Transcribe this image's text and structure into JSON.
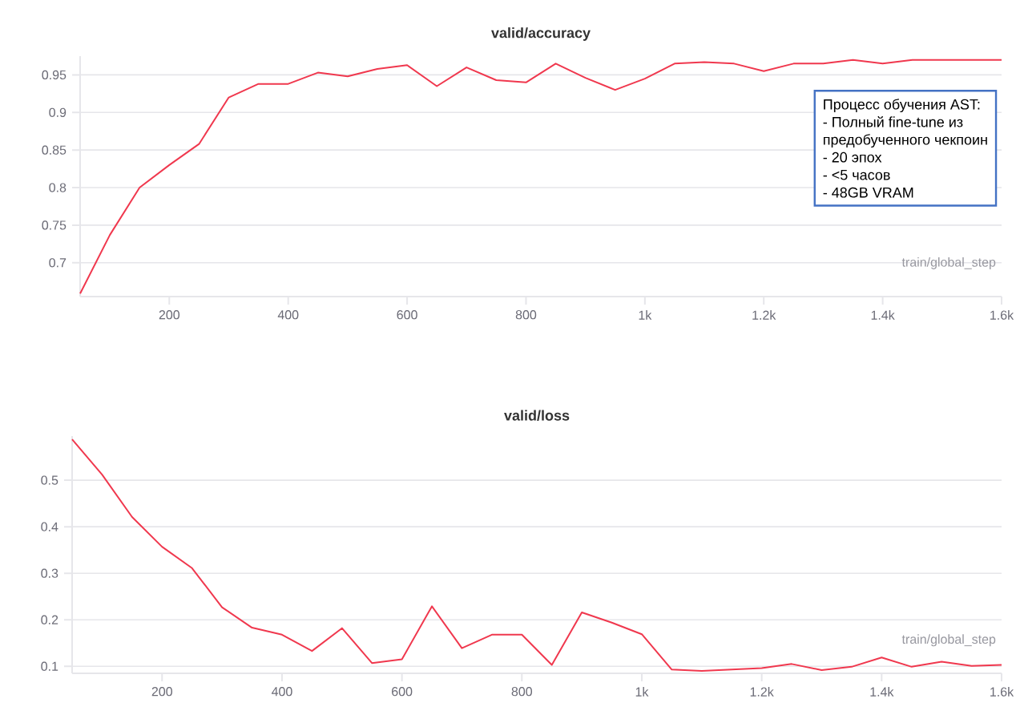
{
  "chart_data": [
    {
      "type": "line",
      "title": "valid/accuracy",
      "xlabel": "train/global_step",
      "xlim": [
        50,
        1600
      ],
      "ylim": [
        0.655,
        0.975
      ],
      "xticks": [
        200,
        400,
        600,
        800,
        {
          "value": 1000,
          "label": "1k"
        },
        {
          "value": 1200,
          "label": "1.2k"
        },
        {
          "value": 1400,
          "label": "1.4k"
        },
        {
          "value": 1600,
          "label": "1.6k"
        }
      ],
      "yticks": [
        0.7,
        0.75,
        0.8,
        0.85,
        0.9,
        0.95
      ],
      "grid": "y",
      "marker": "none",
      "x": [
        50,
        100,
        150,
        200,
        250,
        300,
        350,
        400,
        450,
        500,
        550,
        600,
        650,
        700,
        750,
        800,
        850,
        900,
        950,
        1000,
        1050,
        1100,
        1150,
        1200,
        1250,
        1300,
        1350,
        1400,
        1450,
        1500,
        1550,
        1600
      ],
      "series": [
        {
          "color": "#f0384e",
          "values": [
            0.659,
            0.737,
            0.8,
            0.83,
            0.858,
            0.92,
            0.938,
            0.938,
            0.953,
            0.948,
            0.958,
            0.963,
            0.935,
            0.96,
            0.943,
            0.94,
            0.965,
            0.946,
            0.93,
            0.945,
            0.965,
            0.967,
            0.965,
            0.955,
            0.965,
            0.965,
            0.97,
            0.965,
            0.97,
            0.97,
            0.97,
            0.97
          ]
        }
      ],
      "annotations": [
        "Процесс обучения AST:",
        "- Полный fine-tune из",
        "предобученного чекпоин",
        "- 20 эпох",
        "- <5 часов",
        "- 48GB VRAM"
      ]
    },
    {
      "type": "line",
      "title": "valid/loss",
      "xlabel": "train/global_step",
      "xlim": [
        50,
        1600
      ],
      "ylim": [
        0.085,
        0.595
      ],
      "xticks": [
        200,
        400,
        600,
        800,
        {
          "value": 1000,
          "label": "1k"
        },
        {
          "value": 1200,
          "label": "1.2k"
        },
        {
          "value": 1400,
          "label": "1.4k"
        },
        {
          "value": 1600,
          "label": "1.6k"
        }
      ],
      "yticks": [
        0.1,
        0.2,
        0.3,
        0.4,
        0.5
      ],
      "grid": "y",
      "marker": "none",
      "x": [
        50,
        100,
        150,
        200,
        250,
        300,
        350,
        400,
        450,
        500,
        550,
        600,
        650,
        700,
        750,
        800,
        850,
        900,
        950,
        1000,
        1050,
        1100,
        1150,
        1200,
        1250,
        1300,
        1350,
        1400,
        1450,
        1500,
        1550,
        1600
      ],
      "series": [
        {
          "color": "#f0384e",
          "values": [
            0.588,
            0.512,
            0.421,
            0.357,
            0.311,
            0.227,
            0.183,
            0.168,
            0.133,
            0.182,
            0.107,
            0.115,
            0.229,
            0.139,
            0.168,
            0.168,
            0.103,
            0.216,
            0.194,
            0.169,
            0.093,
            0.09,
            0.093,
            0.096,
            0.105,
            0.092,
            0.099,
            0.119,
            0.099,
            0.11,
            0.101,
            0.103
          ]
        }
      ]
    }
  ]
}
